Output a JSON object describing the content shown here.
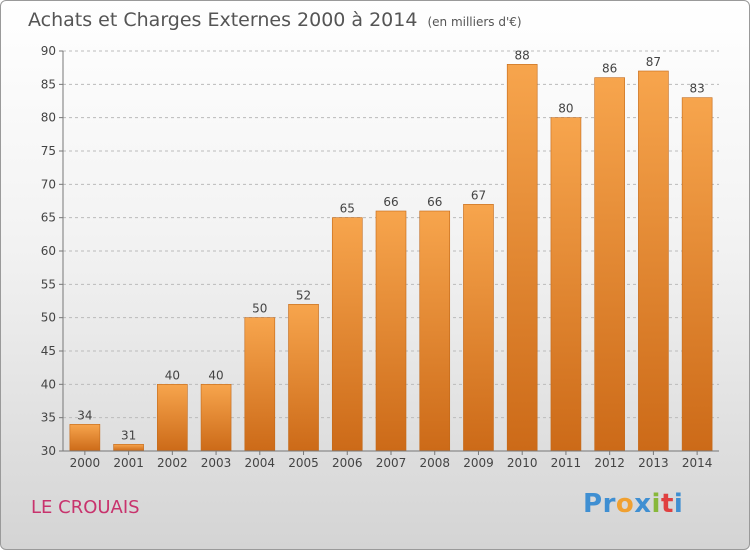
{
  "header": {
    "title": "Achats et Charges Externes 2000 à 2014",
    "unit": "(en milliers d'€)"
  },
  "footer": {
    "commune": "LE CROUAIS",
    "logo": {
      "letters": [
        "P",
        "r",
        "o",
        "x",
        "i",
        "t",
        "i"
      ],
      "colors": [
        "#3f8fd2",
        "#3f8fd2",
        "#f0a030",
        "#3f8fd2",
        "#88b83a",
        "#e04040",
        "#3f8fd2"
      ]
    }
  },
  "colors": {
    "bar_light": "#f7a54d",
    "bar_dark": "#cc6a18",
    "grid": "#bbbbbb",
    "text": "#444444",
    "commune": "#c8336d"
  },
  "chart_data": {
    "type": "bar",
    "title": "Achats et Charges Externes 2000 à 2014",
    "categories": [
      "2000",
      "2001",
      "2002",
      "2003",
      "2004",
      "2005",
      "2006",
      "2007",
      "2008",
      "2009",
      "2010",
      "2011",
      "2012",
      "2013",
      "2014"
    ],
    "values": [
      34,
      31,
      40,
      40,
      50,
      52,
      65,
      66,
      66,
      67,
      88,
      80,
      86,
      87,
      83
    ],
    "data_labels": [
      "34",
      "31",
      "40",
      "40",
      "50",
      "52",
      "65",
      "66",
      "66",
      "67",
      "88",
      "80",
      "86",
      "87",
      "83"
    ],
    "yticks": [
      "30",
      "35",
      "40",
      "45",
      "50",
      "55",
      "60",
      "65",
      "70",
      "75",
      "80",
      "85",
      "90"
    ],
    "ylim": [
      30,
      90
    ],
    "xlabel": "",
    "ylabel": "",
    "grid": true
  }
}
